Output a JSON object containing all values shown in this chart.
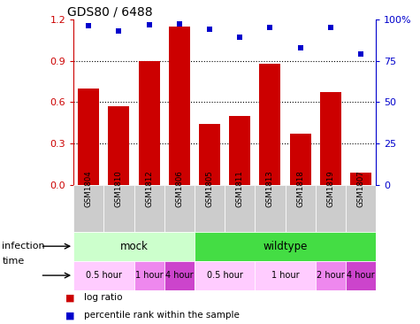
{
  "title": "GDS80 / 6488",
  "samples": [
    "GSM1804",
    "GSM1810",
    "GSM1812",
    "GSM1806",
    "GSM1805",
    "GSM1811",
    "GSM1813",
    "GSM1818",
    "GSM1819",
    "GSM1807"
  ],
  "log_ratio": [
    0.7,
    0.57,
    0.9,
    1.15,
    0.44,
    0.5,
    0.88,
    0.37,
    0.67,
    0.09
  ],
  "percentile_rank": [
    96,
    93,
    97,
    97.5,
    94,
    89,
    95,
    83,
    95,
    79
  ],
  "bar_color": "#cc0000",
  "dot_color": "#0000cc",
  "ylim_left": [
    0,
    1.2
  ],
  "ylim_right": [
    0,
    100
  ],
  "yticks_left": [
    0,
    0.3,
    0.6,
    0.9,
    1.2
  ],
  "yticks_right": [
    0,
    25,
    50,
    75,
    100
  ],
  "infection_groups": [
    {
      "label": "mock",
      "start": 0,
      "end": 4,
      "color": "#ccffcc"
    },
    {
      "label": "wildtype",
      "start": 4,
      "end": 10,
      "color": "#44dd44"
    }
  ],
  "time_groups": [
    {
      "label": "0.5 hour",
      "start": 0,
      "end": 2,
      "color": "#ffccff"
    },
    {
      "label": "1 hour",
      "start": 2,
      "end": 3,
      "color": "#ee88ee"
    },
    {
      "label": "4 hour",
      "start": 3,
      "end": 4,
      "color": "#cc44cc"
    },
    {
      "label": "0.5 hour",
      "start": 4,
      "end": 6,
      "color": "#ffccff"
    },
    {
      "label": "1 hour",
      "start": 6,
      "end": 8,
      "color": "#ffccff"
    },
    {
      "label": "2 hour",
      "start": 8,
      "end": 9,
      "color": "#ee88ee"
    },
    {
      "label": "4 hour",
      "start": 9,
      "end": 10,
      "color": "#cc44cc"
    }
  ],
  "row_labels": [
    "infection",
    "time"
  ],
  "legend_items": [
    {
      "label": "log ratio",
      "color": "#cc0000"
    },
    {
      "label": "percentile rank within the sample",
      "color": "#0000cc"
    }
  ],
  "sample_box_color": "#cccccc",
  "background": "#ffffff"
}
